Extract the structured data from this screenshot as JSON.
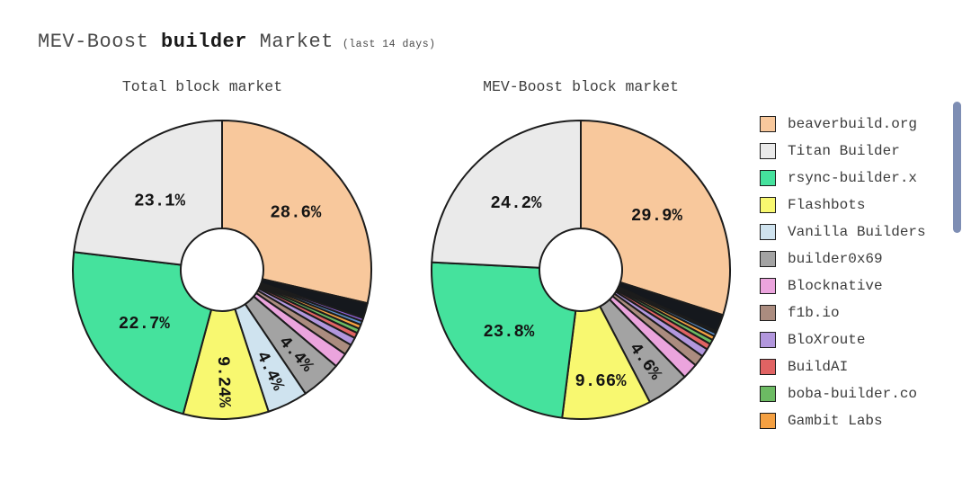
{
  "header": {
    "title_prefix": "MEV-Boost ",
    "title_bold": "builder",
    "title_suffix": " Market",
    "title_note": "(last 14 days)"
  },
  "ui": {
    "background": "#ffffff",
    "wedge_stroke": "#1c1c1c",
    "label_color": "#141414",
    "scrollbar_color": "#7e8eb4"
  },
  "chart_data": [
    {
      "type": "pie",
      "title": "Total block market",
      "donut": true,
      "start_angle_deg": 0,
      "direction": "clockwise",
      "slices": [
        {
          "name": "beaverbuild.org",
          "value": 28.6,
          "color": "#f8c89c",
          "label": {
            "text": "28.6%",
            "rotated": false
          }
        },
        {
          "name": "unknown-black",
          "value": 1.66,
          "color": "#15181d"
        },
        {
          "name": "unknown-purple",
          "value": 0.35,
          "color": "#8e61d6"
        },
        {
          "name": "unknown-blue",
          "value": 0.4,
          "color": "#5c90cc"
        },
        {
          "name": "Gambit Labs",
          "value": 0.45,
          "color": "#f4a042"
        },
        {
          "name": "boba-builder.co",
          "value": 0.5,
          "color": "#6cbb63"
        },
        {
          "name": "BuildAI",
          "value": 0.6,
          "color": "#e06363"
        },
        {
          "name": "BloXroute",
          "value": 0.85,
          "color": "#b297dd"
        },
        {
          "name": "f1b.io",
          "value": 1.15,
          "color": "#ab8c7f"
        },
        {
          "name": "Blocknative",
          "value": 1.6,
          "color": "#eba4dd"
        },
        {
          "name": "builder0x69",
          "value": 4.4,
          "color": "#a3a3a3",
          "label": {
            "text": "4.4%",
            "rotated": true
          }
        },
        {
          "name": "Vanilla Builders",
          "value": 4.4,
          "color": "#cfe3ef",
          "label": {
            "text": "4.4%",
            "rotated": true
          }
        },
        {
          "name": "Flashbots",
          "value": 9.24,
          "color": "#f8f870",
          "label": {
            "text": "9.24%",
            "rotated": true
          }
        },
        {
          "name": "rsync-builder.x",
          "value": 22.7,
          "color": "#45e29d",
          "label": {
            "text": "22.7%",
            "rotated": false
          }
        },
        {
          "name": "Titan Builder",
          "value": 23.1,
          "color": "#eaeaea",
          "label": {
            "text": "23.1%",
            "rotated": false
          }
        }
      ]
    },
    {
      "type": "pie",
      "title": "MEV-Boost block market",
      "donut": true,
      "start_angle_deg": 0,
      "direction": "clockwise",
      "slices": [
        {
          "name": "beaverbuild.org",
          "value": 29.9,
          "color": "#f8c89c",
          "label": {
            "text": "29.9%",
            "rotated": false
          }
        },
        {
          "name": "unknown-black",
          "value": 1.89,
          "color": "#15181d"
        },
        {
          "name": "unknown-teal",
          "value": 0.2,
          "color": "#1d8a80"
        },
        {
          "name": "unknown-blue",
          "value": 0.35,
          "color": "#5c90cc"
        },
        {
          "name": "Gambit Labs",
          "value": 0.45,
          "color": "#f4a042"
        },
        {
          "name": "boba-builder.co",
          "value": 0.5,
          "color": "#6cbb63"
        },
        {
          "name": "BuildAI",
          "value": 0.65,
          "color": "#e06363"
        },
        {
          "name": "BloXroute",
          "value": 0.9,
          "color": "#b297dd"
        },
        {
          "name": "f1b.io",
          "value": 1.2,
          "color": "#ab8c7f"
        },
        {
          "name": "Blocknative",
          "value": 1.7,
          "color": "#eba4dd"
        },
        {
          "name": "builder0x69",
          "value": 4.6,
          "color": "#a3a3a3",
          "label": {
            "text": "4.6%",
            "rotated": true
          }
        },
        {
          "name": "Flashbots",
          "value": 9.66,
          "color": "#f8f870",
          "label": {
            "text": "9.66%",
            "rotated": false
          }
        },
        {
          "name": "rsync-builder.x",
          "value": 23.8,
          "color": "#45e29d",
          "label": {
            "text": "23.8%",
            "rotated": false
          }
        },
        {
          "name": "Titan Builder",
          "value": 24.2,
          "color": "#eaeaea",
          "label": {
            "text": "24.2%",
            "rotated": false
          }
        }
      ]
    }
  ],
  "legend": {
    "items": [
      {
        "label": "beaverbuild.org",
        "color": "#f8c89c"
      },
      {
        "label": "Titan Builder",
        "color": "#eaeaea"
      },
      {
        "label": "rsync-builder.x",
        "color": "#45e29d"
      },
      {
        "label": "Flashbots",
        "color": "#f8f870"
      },
      {
        "label": "Vanilla Builders",
        "color": "#cfe3ef"
      },
      {
        "label": "builder0x69",
        "color": "#a3a3a3"
      },
      {
        "label": "Blocknative",
        "color": "#eba4dd"
      },
      {
        "label": "f1b.io",
        "color": "#ab8c7f"
      },
      {
        "label": "BloXroute",
        "color": "#b297dd"
      },
      {
        "label": "BuildAI",
        "color": "#e06363"
      },
      {
        "label": "boba-builder.co",
        "color": "#6cbb63"
      },
      {
        "label": "Gambit Labs",
        "color": "#f4a042"
      },
      {
        "label": "",
        "color": "#15181d"
      }
    ]
  }
}
